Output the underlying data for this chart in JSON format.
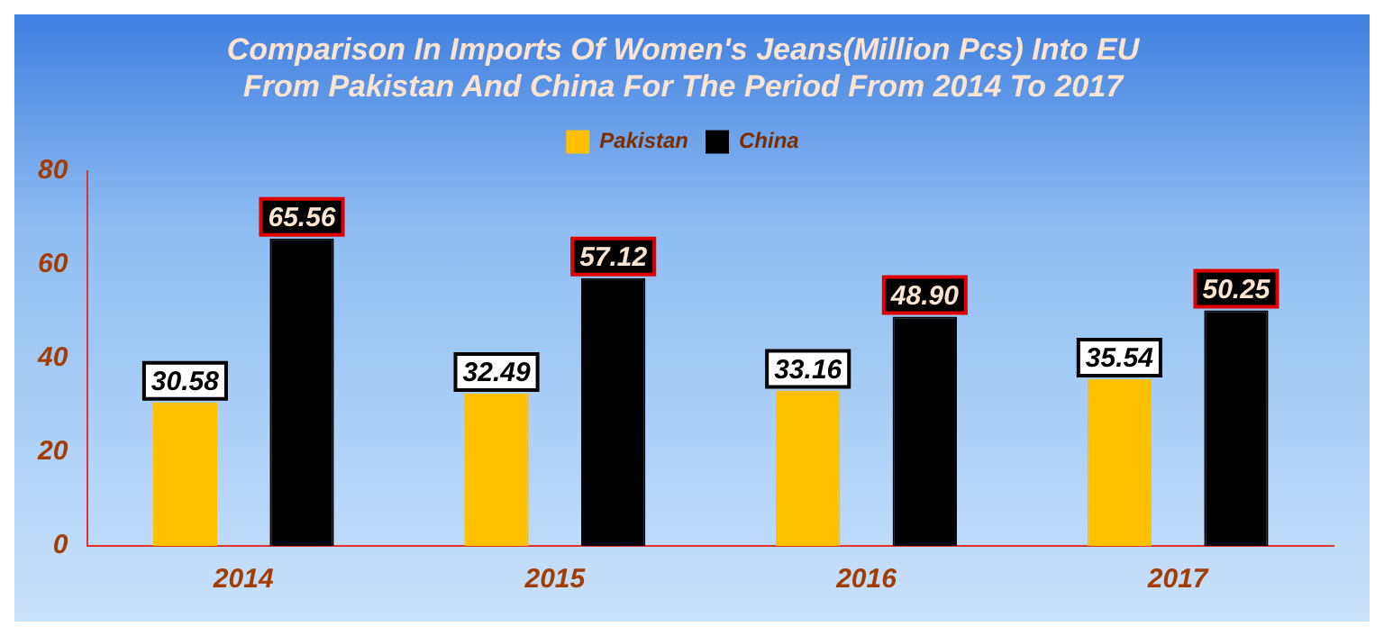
{
  "chart_data": {
    "type": "bar",
    "title": [
      "Comparison In Imports Of Women's Jeans(Million Pcs) Into EU",
      "From Pakistan And China For The Period From 2014 To 2017"
    ],
    "categories": [
      "2014",
      "2015",
      "2016",
      "2017"
    ],
    "series": [
      {
        "name": "Pakistan",
        "color": "#ffc000",
        "values": [
          30.58,
          32.49,
          33.16,
          35.54
        ]
      },
      {
        "name": "China",
        "color": "#000000",
        "values": [
          65.56,
          57.12,
          48.9,
          50.25
        ]
      }
    ],
    "value_labels": [
      [
        "30.58",
        "32.49",
        "33.16",
        "35.54"
      ],
      [
        "65.56",
        "57.12",
        "48.90",
        "50.25"
      ]
    ],
    "ylim": [
      0,
      80
    ],
    "yticks": [
      0,
      20,
      40,
      60,
      80
    ],
    "grid": false,
    "legend": "top"
  }
}
